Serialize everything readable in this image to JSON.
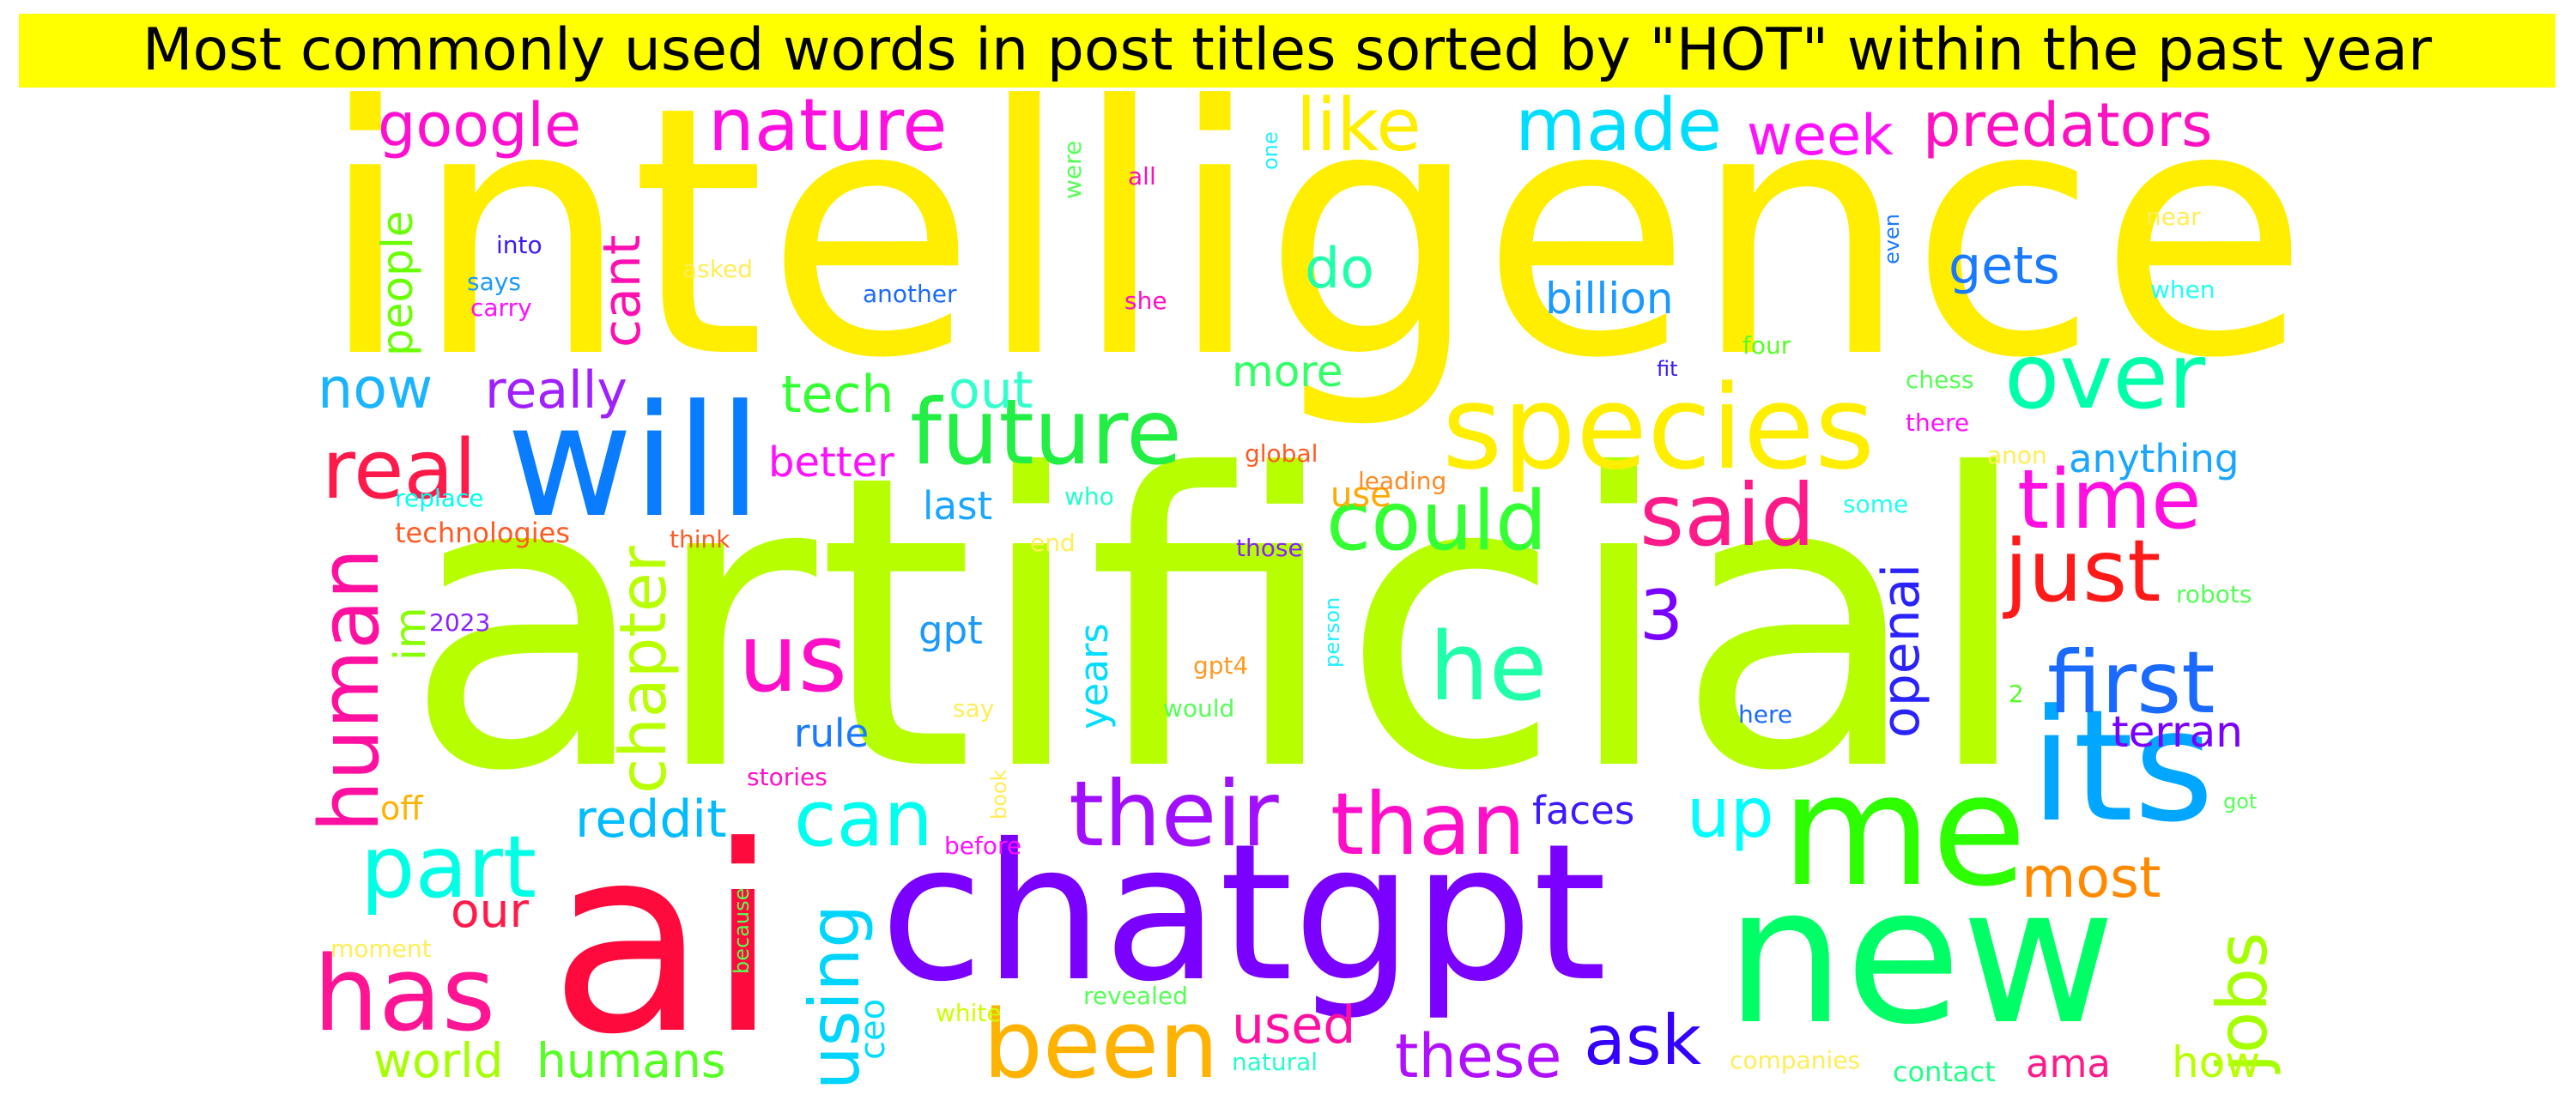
{
  "title": "Most commonly used words in post titles sorted by \"HOT\" within the past year",
  "words": [
    {
      "text": "intelligence",
      "color": "#ffee00"
    },
    {
      "text": "artificial",
      "color": "#b7ff00"
    },
    {
      "text": "ai",
      "color": "#ff0a3c"
    },
    {
      "text": "chatgpt",
      "color": "#7a00ff"
    },
    {
      "text": "new",
      "color": "#00ff66"
    },
    {
      "text": "its",
      "color": "#00a6ff"
    },
    {
      "text": "me",
      "color": "#2eff00"
    },
    {
      "text": "will",
      "color": "#0a7cff"
    },
    {
      "text": "species",
      "color": "#ffee00"
    },
    {
      "text": "been",
      "color": "#ffb300"
    },
    {
      "text": "has",
      "color": "#ff1493"
    },
    {
      "text": "future",
      "color": "#22ee44"
    },
    {
      "text": "their",
      "color": "#a010ff"
    },
    {
      "text": "than",
      "color": "#ff10c8"
    },
    {
      "text": "us",
      "color": "#ff10c8"
    },
    {
      "text": "he",
      "color": "#22ffaa"
    },
    {
      "text": "just",
      "color": "#ff1a1a"
    },
    {
      "text": "first",
      "color": "#1a6aff"
    },
    {
      "text": "over",
      "color": "#00ffaa"
    },
    {
      "text": "could",
      "color": "#33ff33"
    },
    {
      "text": "real",
      "color": "#ff1a4a"
    },
    {
      "text": "part",
      "color": "#00ffe5"
    },
    {
      "text": "can",
      "color": "#00ffee"
    },
    {
      "text": "said",
      "color": "#ff1a8a"
    },
    {
      "text": "time",
      "color": "#ff10e0"
    },
    {
      "text": "nature",
      "color": "#ff10e0"
    },
    {
      "text": "made",
      "color": "#00ddff"
    },
    {
      "text": "like",
      "color": "#ffee00"
    },
    {
      "text": "ask",
      "color": "#3300ff"
    },
    {
      "text": "these",
      "color": "#b010ff"
    },
    {
      "text": "using",
      "color": "#00d5ff"
    },
    {
      "text": "human",
      "color": "#ff10a0"
    },
    {
      "text": "chapter",
      "color": "#b8ff00"
    },
    {
      "text": "jobs",
      "color": "#a6ff00"
    },
    {
      "text": "openai",
      "color": "#2a22ff"
    },
    {
      "text": "up",
      "color": "#00ffff"
    },
    {
      "text": "most",
      "color": "#ff8a00"
    },
    {
      "text": "predators",
      "color": "#ff10c0"
    },
    {
      "text": "google",
      "color": "#ff10d0"
    },
    {
      "text": "week",
      "color": "#ff10ff"
    },
    {
      "text": "gets",
      "color": "#1a7aff"
    },
    {
      "text": "do",
      "color": "#22ffaa"
    },
    {
      "text": "now",
      "color": "#1ab4ff"
    },
    {
      "text": "really",
      "color": "#a020ff"
    },
    {
      "text": "tech",
      "color": "#33ff33"
    },
    {
      "text": "out",
      "color": "#33ffcc"
    },
    {
      "text": "billion",
      "color": "#1a99ff"
    },
    {
      "text": "more",
      "color": "#33ff66"
    },
    {
      "text": "cant",
      "color": "#ff10b0"
    },
    {
      "text": "people",
      "color": "#6aff00"
    },
    {
      "text": "better",
      "color": "#ff10ff"
    },
    {
      "text": "anything",
      "color": "#1aa6ff"
    },
    {
      "text": "3",
      "color": "#7a00ff"
    },
    {
      "text": "reddit",
      "color": "#00bbff"
    },
    {
      "text": "our",
      "color": "#ff1a4a"
    },
    {
      "text": "world",
      "color": "#a6ff00"
    },
    {
      "text": "humans",
      "color": "#55ff22"
    },
    {
      "text": "used",
      "color": "#ff10a0"
    },
    {
      "text": "faces",
      "color": "#3a1aff"
    },
    {
      "text": "ama",
      "color": "#ff1a8a"
    },
    {
      "text": "how",
      "color": "#b8ff00"
    },
    {
      "text": "terran",
      "color": "#7a00ff"
    },
    {
      "text": "rule",
      "color": "#1a7aff"
    },
    {
      "text": "years",
      "color": "#00ddff"
    },
    {
      "text": "gpt",
      "color": "#1a99ff"
    },
    {
      "text": "last",
      "color": "#1aa6ff"
    },
    {
      "text": "im",
      "color": "#88ff00"
    },
    {
      "text": "ceo",
      "color": "#00ddff"
    },
    {
      "text": "off",
      "color": "#ffb300"
    },
    {
      "text": "use",
      "color": "#ffaa00"
    },
    {
      "text": "technologies",
      "color": "#ff5a22"
    },
    {
      "text": "think",
      "color": "#ff5a22"
    },
    {
      "text": "replace",
      "color": "#00ffee"
    },
    {
      "text": "2023",
      "color": "#8a22ff"
    },
    {
      "text": "stories",
      "color": "#ff10c8"
    },
    {
      "text": "book",
      "color": "#ffee55"
    },
    {
      "text": "before",
      "color": "#ff10ff"
    },
    {
      "text": "because",
      "color": "#55ff55"
    },
    {
      "text": "moment",
      "color": "#ffee55"
    },
    {
      "text": "white",
      "color": "#ccff00"
    },
    {
      "text": "revealed",
      "color": "#55ff55"
    },
    {
      "text": "natural",
      "color": "#22ffcc"
    },
    {
      "text": "companies",
      "color": "#ffee55"
    },
    {
      "text": "contact",
      "color": "#22ff88"
    },
    {
      "text": "say",
      "color": "#ffee55"
    },
    {
      "text": "would",
      "color": "#55ff55"
    },
    {
      "text": "gpt4",
      "color": "#ff9a22"
    },
    {
      "text": "person",
      "color": "#22eeff"
    },
    {
      "text": "those",
      "color": "#8a22ff"
    },
    {
      "text": "end",
      "color": "#ffee55"
    },
    {
      "text": "who",
      "color": "#22ffcc"
    },
    {
      "text": "global",
      "color": "#ff5a22"
    },
    {
      "text": "leading",
      "color": "#ff8a22"
    },
    {
      "text": "fit",
      "color": "#3a1aff"
    },
    {
      "text": "four",
      "color": "#55ff22"
    },
    {
      "text": "chess",
      "color": "#55ff55"
    },
    {
      "text": "there",
      "color": "#ff10ff"
    },
    {
      "text": "anon",
      "color": "#ffee55"
    },
    {
      "text": "some",
      "color": "#22ffee"
    },
    {
      "text": "robots",
      "color": "#55ff55"
    },
    {
      "text": "2",
      "color": "#55ff22"
    },
    {
      "text": "here",
      "color": "#1a6aff"
    },
    {
      "text": "got",
      "color": "#55ff55"
    },
    {
      "text": "near",
      "color": "#ffee55"
    },
    {
      "text": "when",
      "color": "#22ffee"
    },
    {
      "text": "even",
      "color": "#1a7aff"
    },
    {
      "text": "one",
      "color": "#22eeff"
    },
    {
      "text": "were",
      "color": "#55ff55"
    },
    {
      "text": "all",
      "color": "#ff10b0"
    },
    {
      "text": "she",
      "color": "#ff10c8"
    },
    {
      "text": "another",
      "color": "#1a6aff"
    },
    {
      "text": "asked",
      "color": "#ffee55"
    },
    {
      "text": "into",
      "color": "#3a1aff"
    },
    {
      "text": "says",
      "color": "#1a99ff"
    },
    {
      "text": "carry",
      "color": "#ff10ff"
    }
  ]
}
